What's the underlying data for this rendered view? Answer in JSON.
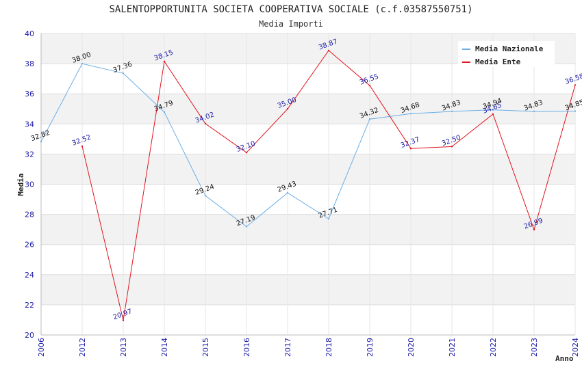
{
  "chart_data": {
    "type": "line",
    "title": "SALENTOPPORTUNITA SOCIETA COOPERATIVA SOCIALE (c.f.03587550751)",
    "subtitle": "Media Importi",
    "xlabel": "Anno",
    "ylabel": "Media",
    "ylim": [
      20,
      40
    ],
    "yticks": [
      20,
      22,
      24,
      26,
      28,
      30,
      32,
      34,
      36,
      38,
      40
    ],
    "categories": [
      "2006",
      "2012",
      "2013",
      "2014",
      "2015",
      "2016",
      "2017",
      "2018",
      "2019",
      "2020",
      "2021",
      "2022",
      "2023",
      "2024"
    ],
    "legend_position": "top-right",
    "series": [
      {
        "name": "Media Nazionale",
        "color": "#6aaee6",
        "label_color": "#111111",
        "values": [
          32.82,
          38.0,
          37.36,
          34.79,
          29.24,
          27.19,
          29.43,
          27.71,
          34.32,
          34.68,
          34.83,
          34.94,
          34.83,
          34.85
        ],
        "labels": [
          "32.82",
          "38.00",
          "37.36",
          "34.79",
          "29.24",
          "27.19",
          "29.43",
          "27.71",
          "34.32",
          "34.68",
          "34.83",
          "34.94",
          "34.83",
          "34.85"
        ]
      },
      {
        "name": "Media Ente",
        "color": "#e0141e",
        "label_color": "#1a1aa6",
        "values": [
          null,
          32.52,
          20.97,
          38.15,
          34.02,
          32.1,
          35.0,
          38.87,
          36.55,
          32.37,
          32.5,
          34.65,
          26.99,
          36.58
        ],
        "labels": [
          null,
          "32.52",
          "20.97",
          "38.15",
          "34.02",
          "32.10",
          "35.00",
          "38.87",
          "36.55",
          "32.37",
          "32.50",
          "34.65",
          "26.99",
          "36.58"
        ]
      }
    ]
  }
}
